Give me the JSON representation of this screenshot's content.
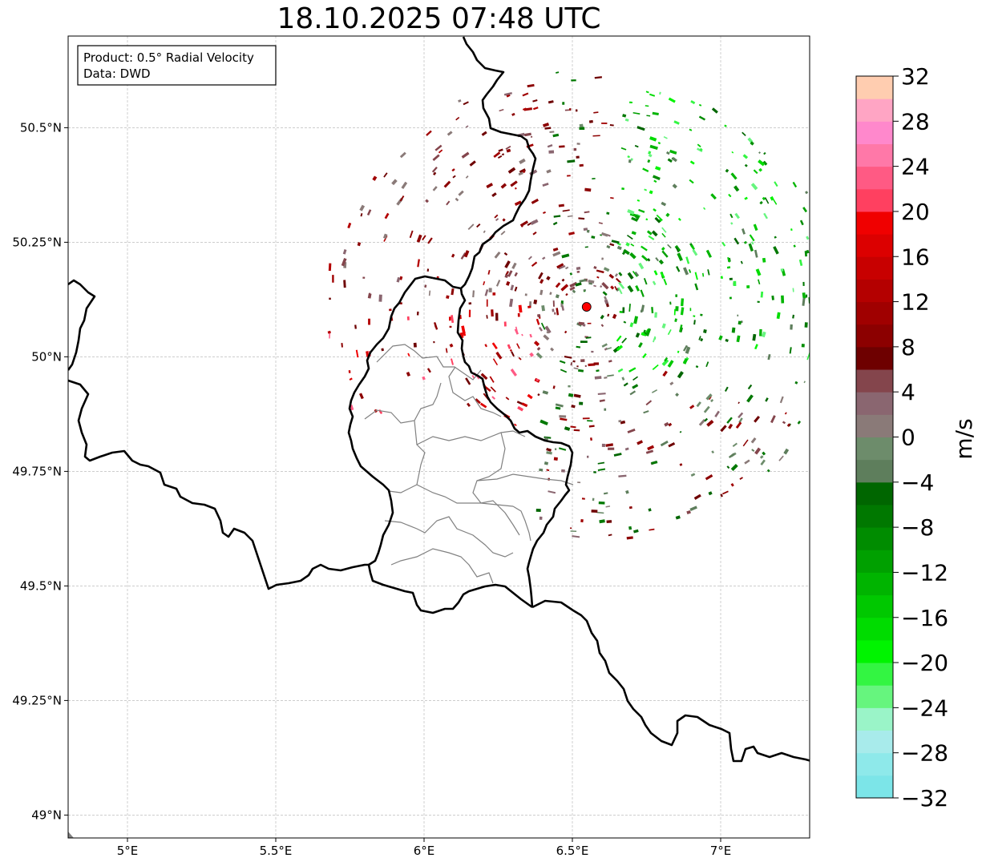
{
  "title": "18.10.2025 07:48 UTC",
  "info_box": {
    "product": "Product: 0.5° Radial Velocity",
    "data_source": "Data: DWD"
  },
  "map": {
    "lon_range": [
      4.8,
      7.3
    ],
    "lat_range": [
      48.95,
      50.7
    ],
    "x_ticks": [
      {
        "value": 5.0,
        "label": "5°E"
      },
      {
        "value": 5.5,
        "label": "5.5°E"
      },
      {
        "value": 6.0,
        "label": "6°E"
      },
      {
        "value": 6.5,
        "label": "6.5°E"
      },
      {
        "value": 7.0,
        "label": "7°E"
      }
    ],
    "y_ticks": [
      {
        "value": 50.5,
        "label": "50.5°N"
      },
      {
        "value": 50.25,
        "label": "50.25°N"
      },
      {
        "value": 50.0,
        "label": "50°N"
      },
      {
        "value": 49.75,
        "label": "49.75°N"
      },
      {
        "value": 49.5,
        "label": "49.5°N"
      },
      {
        "value": 49.25,
        "label": "49.25°N"
      },
      {
        "value": 49.0,
        "label": "49°N"
      }
    ],
    "radar_site": {
      "lon": 6.548,
      "lat": 50.109,
      "color": "#ff0000"
    },
    "colors": {
      "border": "#000000",
      "region": "#808080",
      "grid": "#b0b0b0"
    }
  },
  "colorbar": {
    "unit": "m/s",
    "min": -32,
    "max": 32,
    "step": 2,
    "tick_values": [
      32,
      28,
      24,
      20,
      16,
      12,
      8,
      4,
      0,
      -4,
      -8,
      -12,
      -16,
      -20,
      -24,
      -28,
      -32
    ],
    "tick_labels": [
      "32",
      "28",
      "24",
      "20",
      "16",
      "12",
      "8",
      "4",
      "0",
      "−4",
      "−8",
      "−12",
      "−16",
      "−20",
      "−24",
      "−28",
      "−32"
    ],
    "segments": [
      "#7ce5e8",
      "#8ee9ea",
      "#a8ebeb",
      "#9af4c8",
      "#66f57e",
      "#33f542",
      "#00f400",
      "#00dc00",
      "#00c800",
      "#00b400",
      "#00a000",
      "#008c00",
      "#007800",
      "#006600",
      "#5e7e5c",
      "#6d8c6b",
      "#8a7a78",
      "#8a6670",
      "#84454c",
      "#6e0000",
      "#8c0000",
      "#a00000",
      "#b40000",
      "#c80000",
      "#dc0000",
      "#f00000",
      "#ff4060",
      "#ff5a84",
      "#ff78a8",
      "#ff88cc",
      "#ffa5c4",
      "#ffcdb0"
    ]
  }
}
